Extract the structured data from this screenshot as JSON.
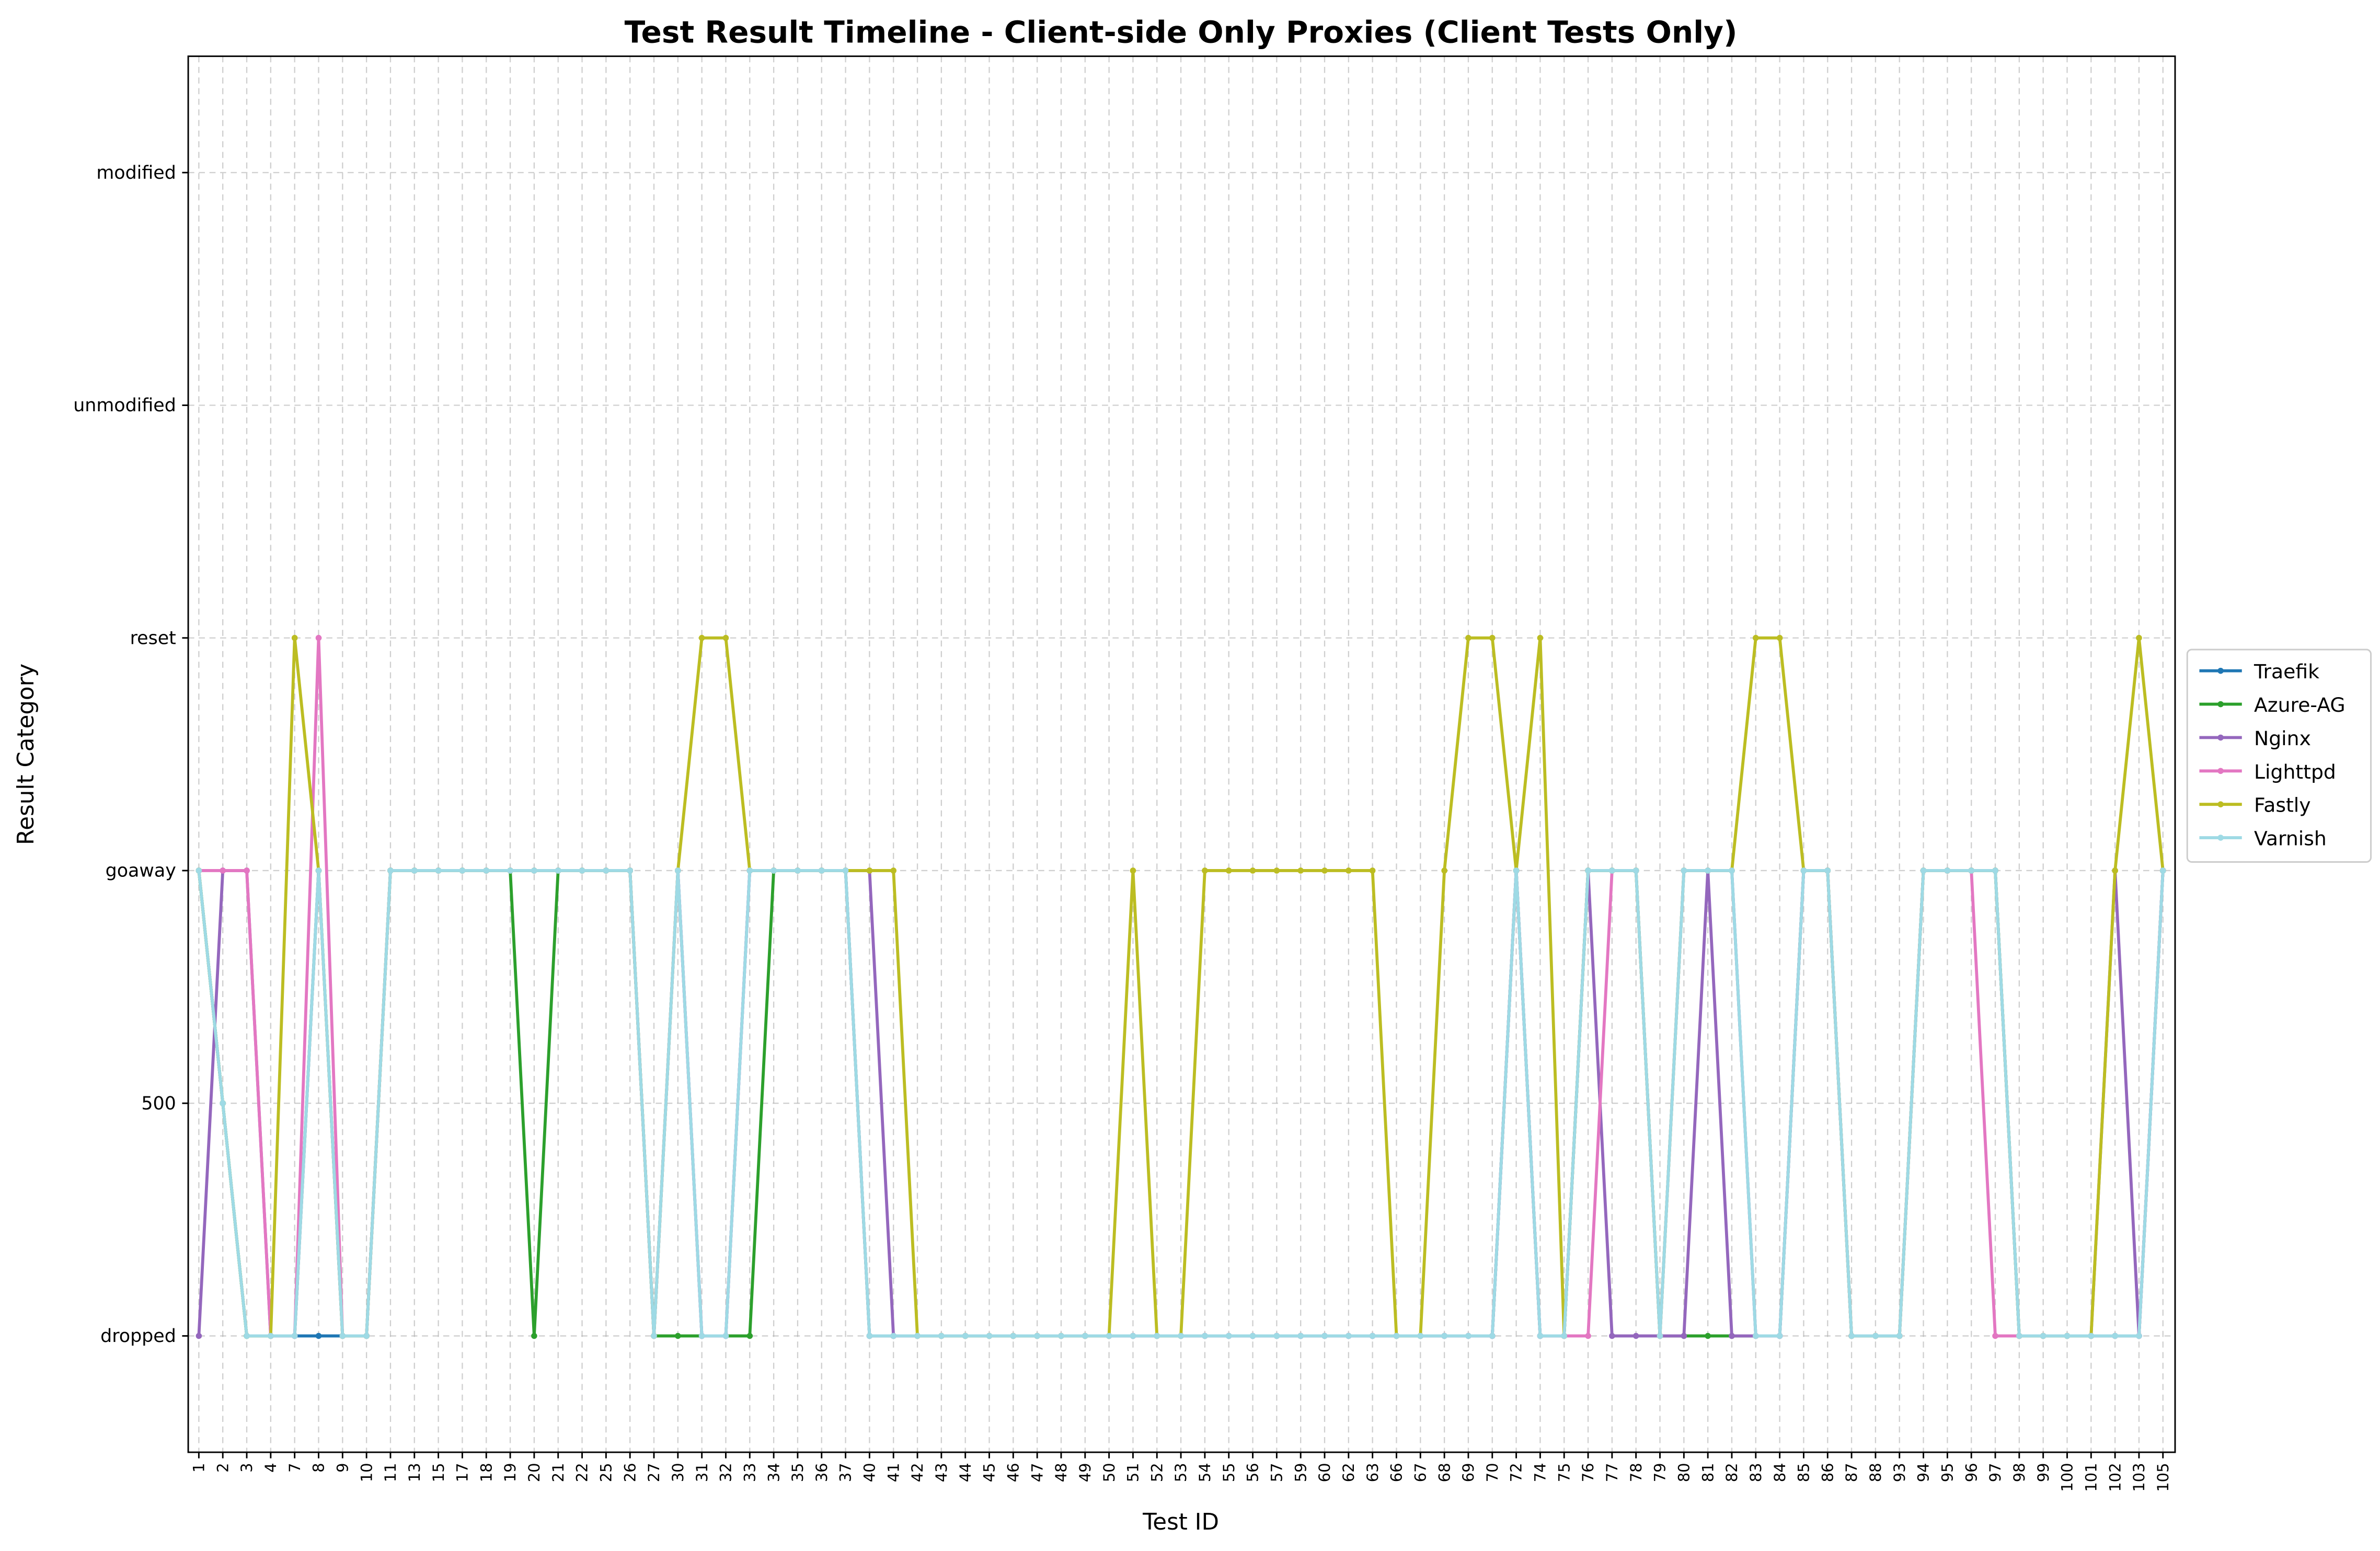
{
  "chart_data": {
    "type": "line",
    "title": "Test Result Timeline - Client-side Only Proxies (Client Tests Only)",
    "x_label": "Test ID",
    "y_label": "Result Category",
    "y_categories": [
      "dropped",
      "500",
      "goaway",
      "reset",
      "unmodified",
      "modified"
    ],
    "categories": [
      "1",
      "2",
      "3",
      "4",
      "7",
      "8",
      "9",
      "10",
      "11",
      "13",
      "15",
      "17",
      "18",
      "19",
      "20",
      "21",
      "22",
      "25",
      "26",
      "27",
      "30",
      "31",
      "32",
      "33",
      "34",
      "35",
      "36",
      "37",
      "40",
      "41",
      "42",
      "43",
      "44",
      "45",
      "46",
      "47",
      "48",
      "49",
      "50",
      "51",
      "52",
      "53",
      "54",
      "55",
      "56",
      "57",
      "59",
      "60",
      "62",
      "63",
      "66",
      "67",
      "68",
      "69",
      "70",
      "72",
      "74",
      "75",
      "76",
      "77",
      "78",
      "79",
      "80",
      "81",
      "82",
      "83",
      "84",
      "85",
      "86",
      "87",
      "88",
      "93",
      "94",
      "95",
      "96",
      "97",
      "98",
      "99",
      "100",
      "101",
      "102",
      "103",
      "105"
    ],
    "grid": true,
    "legend": "right",
    "series": [
      {
        "name": "Traefik",
        "color": "#1f77b4",
        "values": [
          "goaway",
          "500",
          "dropped",
          "dropped",
          "dropped",
          "dropped",
          "dropped",
          "dropped",
          "goaway",
          "goaway",
          "goaway",
          "goaway",
          "goaway",
          "goaway",
          "goaway",
          "goaway",
          "goaway",
          "goaway",
          "goaway",
          "dropped",
          "goaway",
          "dropped",
          "dropped",
          "goaway",
          "goaway",
          "goaway",
          "goaway",
          "goaway",
          "dropped",
          "dropped",
          "dropped",
          "dropped",
          "dropped",
          "dropped",
          "dropped",
          "dropped",
          "dropped",
          "dropped",
          "dropped",
          "dropped",
          "dropped",
          "dropped",
          "dropped",
          "dropped",
          "dropped",
          "dropped",
          "dropped",
          "dropped",
          "dropped",
          "dropped",
          "dropped",
          "dropped",
          "dropped",
          "dropped",
          "dropped",
          "goaway",
          "dropped",
          "dropped",
          "goaway",
          "goaway",
          "goaway",
          "dropped",
          "goaway",
          "goaway",
          "goaway",
          "dropped",
          "dropped",
          "goaway",
          "goaway",
          "dropped",
          "dropped",
          "dropped",
          "goaway",
          "goaway",
          "goaway",
          "goaway",
          "dropped",
          "dropped",
          "dropped",
          "dropped",
          "dropped",
          "dropped",
          "goaway"
        ]
      },
      {
        "name": "Azure-AG",
        "color": "#2ca02c",
        "values": [
          "goaway",
          "500",
          "dropped",
          "dropped",
          "dropped",
          "goaway",
          "dropped",
          "dropped",
          "goaway",
          "goaway",
          "goaway",
          "goaway",
          "goaway",
          "goaway",
          "dropped",
          "goaway",
          "goaway",
          "goaway",
          "goaway",
          "dropped",
          "dropped",
          "dropped",
          "dropped",
          "dropped",
          "goaway",
          "goaway",
          "goaway",
          "goaway",
          "dropped",
          "dropped",
          "dropped",
          "dropped",
          "dropped",
          "dropped",
          "dropped",
          "dropped",
          "dropped",
          "dropped",
          "dropped",
          "dropped",
          "dropped",
          "dropped",
          "dropped",
          "dropped",
          "dropped",
          "dropped",
          "dropped",
          "dropped",
          "dropped",
          "dropped",
          "dropped",
          "dropped",
          "dropped",
          "dropped",
          "dropped",
          "goaway",
          "dropped",
          "dropped",
          "goaway",
          "goaway",
          "goaway",
          "dropped",
          "dropped",
          "dropped",
          "dropped",
          "dropped",
          "dropped",
          "goaway",
          "goaway",
          "dropped",
          "dropped",
          "dropped",
          "goaway",
          "goaway",
          "goaway",
          "goaway",
          "dropped",
          "dropped",
          "dropped",
          "dropped",
          "dropped",
          "dropped",
          "goaway"
        ]
      },
      {
        "name": "Nginx",
        "color": "#9467bd",
        "values": [
          "dropped",
          "goaway",
          "goaway",
          "dropped",
          "dropped",
          "goaway",
          "dropped",
          "dropped",
          "goaway",
          "goaway",
          "goaway",
          "goaway",
          "goaway",
          "goaway",
          "goaway",
          "goaway",
          "goaway",
          "goaway",
          "goaway",
          "dropped",
          "goaway",
          "dropped",
          "dropped",
          "goaway",
          "goaway",
          "goaway",
          "goaway",
          "goaway",
          "goaway",
          "dropped",
          "dropped",
          "dropped",
          "dropped",
          "dropped",
          "dropped",
          "dropped",
          "dropped",
          "dropped",
          "dropped",
          "dropped",
          "dropped",
          "dropped",
          "dropped",
          "dropped",
          "dropped",
          "dropped",
          "dropped",
          "dropped",
          "dropped",
          "dropped",
          "dropped",
          "dropped",
          "dropped",
          "dropped",
          "dropped",
          "goaway",
          "dropped",
          "dropped",
          "goaway",
          "dropped",
          "dropped",
          "dropped",
          "dropped",
          "goaway",
          "dropped",
          "dropped",
          "dropped",
          "goaway",
          "goaway",
          "dropped",
          "dropped",
          "dropped",
          "goaway",
          "goaway",
          "goaway",
          "goaway",
          "dropped",
          "dropped",
          "dropped",
          "dropped",
          "goaway",
          "dropped",
          "goaway"
        ]
      },
      {
        "name": "Lighttpd",
        "color": "#e377c2",
        "values": [
          "goaway",
          "goaway",
          "goaway",
          "dropped",
          "dropped",
          "reset",
          "dropped",
          "dropped",
          "goaway",
          "goaway",
          "goaway",
          "goaway",
          "goaway",
          "goaway",
          "goaway",
          "goaway",
          "goaway",
          "goaway",
          "goaway",
          "dropped",
          "goaway",
          "dropped",
          "dropped",
          "goaway",
          "goaway",
          "goaway",
          "goaway",
          "goaway",
          "dropped",
          "dropped",
          "dropped",
          "dropped",
          "dropped",
          "dropped",
          "dropped",
          "dropped",
          "dropped",
          "dropped",
          "dropped",
          "dropped",
          "dropped",
          "dropped",
          "dropped",
          "dropped",
          "dropped",
          "dropped",
          "dropped",
          "dropped",
          "dropped",
          "dropped",
          "dropped",
          "dropped",
          "dropped",
          "dropped",
          "dropped",
          "goaway",
          "dropped",
          "dropped",
          "dropped",
          "goaway",
          "goaway",
          "dropped",
          "goaway",
          "goaway",
          "goaway",
          "dropped",
          "dropped",
          "goaway",
          "goaway",
          "dropped",
          "dropped",
          "dropped",
          "goaway",
          "goaway",
          "goaway",
          "dropped",
          "dropped",
          "dropped",
          "dropped",
          "dropped",
          "dropped",
          "dropped",
          "goaway"
        ]
      },
      {
        "name": "Fastly",
        "color": "#bcbd22",
        "values": [
          "goaway",
          "500",
          "dropped",
          "dropped",
          "reset",
          "goaway",
          "dropped",
          "dropped",
          "goaway",
          "goaway",
          "goaway",
          "goaway",
          "goaway",
          "goaway",
          "goaway",
          "goaway",
          "goaway",
          "goaway",
          "goaway",
          "dropped",
          "goaway",
          "reset",
          "reset",
          "goaway",
          "goaway",
          "goaway",
          "goaway",
          "goaway",
          "goaway",
          "goaway",
          "dropped",
          "dropped",
          "dropped",
          "dropped",
          "dropped",
          "dropped",
          "dropped",
          "dropped",
          "dropped",
          "goaway",
          "dropped",
          "dropped",
          "goaway",
          "goaway",
          "goaway",
          "goaway",
          "goaway",
          "goaway",
          "goaway",
          "goaway",
          "dropped",
          "dropped",
          "goaway",
          "reset",
          "reset",
          "goaway",
          "reset",
          "dropped",
          "goaway",
          "goaway",
          "goaway",
          "dropped",
          "goaway",
          "goaway",
          "goaway",
          "reset",
          "reset",
          "goaway",
          "goaway",
          "dropped",
          "dropped",
          "dropped",
          "goaway",
          "goaway",
          "goaway",
          "goaway",
          "dropped",
          "dropped",
          "dropped",
          "dropped",
          "goaway",
          "reset",
          "goaway"
        ]
      },
      {
        "name": "Varnish",
        "color": "#9edae5",
        "values": [
          "goaway",
          "500",
          "dropped",
          "dropped",
          "dropped",
          "goaway",
          "dropped",
          "dropped",
          "goaway",
          "goaway",
          "goaway",
          "goaway",
          "goaway",
          "goaway",
          "goaway",
          "goaway",
          "goaway",
          "goaway",
          "goaway",
          "dropped",
          "goaway",
          "dropped",
          "dropped",
          "goaway",
          "goaway",
          "goaway",
          "goaway",
          "goaway",
          "dropped",
          "dropped",
          "dropped",
          "dropped",
          "dropped",
          "dropped",
          "dropped",
          "dropped",
          "dropped",
          "dropped",
          "dropped",
          "dropped",
          "dropped",
          "dropped",
          "dropped",
          "dropped",
          "dropped",
          "dropped",
          "dropped",
          "dropped",
          "dropped",
          "dropped",
          "dropped",
          "dropped",
          "dropped",
          "dropped",
          "dropped",
          "goaway",
          "dropped",
          "dropped",
          "goaway",
          "goaway",
          "goaway",
          "dropped",
          "goaway",
          "goaway",
          "goaway",
          "dropped",
          "dropped",
          "goaway",
          "goaway",
          "dropped",
          "dropped",
          "dropped",
          "goaway",
          "goaway",
          "goaway",
          "goaway",
          "dropped",
          "dropped",
          "dropped",
          "dropped",
          "dropped",
          "dropped",
          "goaway"
        ]
      }
    ]
  }
}
